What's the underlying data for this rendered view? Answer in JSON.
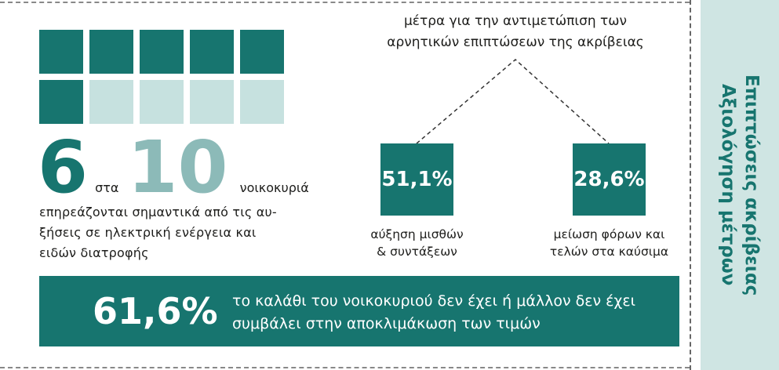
{
  "side_panel": {
    "lines": [
      "Επιπτώσεις ακρίβειας",
      "Αξιολόγηση μέτρων"
    ]
  },
  "households": {
    "count": "6",
    "connector": "στα",
    "total": "10",
    "noun": "νοικοκυριά",
    "text_lines": [
      "επηρεάζονται σημαντικά από τις αυ-",
      "ξήσεις σε ηλεκτρική ενέργεια και",
      "ειδών διατροφής"
    ]
  },
  "measures": {
    "title_lines": [
      "μέτρα για την αντιμετώπιση των",
      "αρνητικών επιπτώσεων της ακρίβειας"
    ],
    "items": [
      {
        "value": "51,1%",
        "label_lines": [
          "αύξηση μισθών",
          "& συντάξεων"
        ]
      },
      {
        "value": "28,6%",
        "label_lines": [
          "μείωση φόρων και",
          "τελών στα καύσιμα"
        ]
      }
    ]
  },
  "basket": {
    "value": "61,6%",
    "text_lines": [
      "το καλάθι του νοικοκυριού δεν έχει ή μάλλον δεν έχει",
      "συμβάλει στην αποκλιμάκωση των τιμών"
    ]
  }
}
